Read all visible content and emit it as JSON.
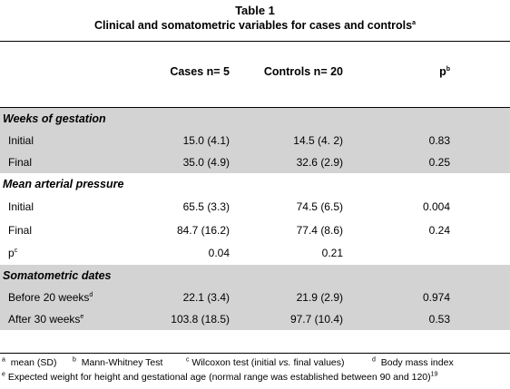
{
  "table": {
    "title": "Table 1",
    "subtitle": "Clinical and somatometric variables for cases and controls",
    "subtitle_mark": "a",
    "headers": {
      "cases": "Cases   n= 5",
      "controls": "Controls   n= 20",
      "p": "p",
      "p_mark": "b"
    },
    "sections": {
      "gestation": {
        "label": "Weeks of gestation",
        "initial": {
          "label": "Initial",
          "cases": "15.0 (4.1)",
          "controls": "14.5 (4. 2)",
          "p": "0.83"
        },
        "final": {
          "label": "Final",
          "cases": "35.0 (4.9)",
          "controls": "32.6 (2.9)",
          "p": "0.25"
        }
      },
      "pressure": {
        "label": "Mean arterial pressure",
        "initial": {
          "label": "Initial",
          "cases": "65.5 (3.3)",
          "controls": "74.5 (6.5)",
          "p": "0.004"
        },
        "final": {
          "label": "Final",
          "cases": "84.7 (16.2)",
          "controls": "77.4 (8.6)",
          "p": "0.24"
        },
        "pc": {
          "label": "p",
          "mark": "c",
          "cases": "0.04",
          "controls": "0.21"
        }
      },
      "somatometric": {
        "label": "Somatometric dates",
        "before20": {
          "label": "Before 20 weeks",
          "mark": "d",
          "cases": "22.1 (3.4)",
          "controls": "21.9 (2.9)",
          "p": "0.974"
        },
        "after30": {
          "label": "After 30 weeks",
          "mark": "e",
          "cases": "103.8 (18.5)",
          "controls": "97.7 (10.4)",
          "p": "0.53"
        }
      }
    },
    "footnotes": {
      "a_mark": "a",
      "a_text": "mean (SD)",
      "b_mark": "b",
      "b_text": "Mann-Whitney Test",
      "c_mark": "c",
      "c_text1": "Wilcoxon test (initial",
      "c_vs": "vs.",
      "c_text2": "final values)",
      "d_mark": "d",
      "d_text": "Body mass index",
      "e_mark": "e",
      "e_text": "Expected weight for height and gestational age (normal range was established between 90 and 120)",
      "e_ref": "19"
    }
  }
}
